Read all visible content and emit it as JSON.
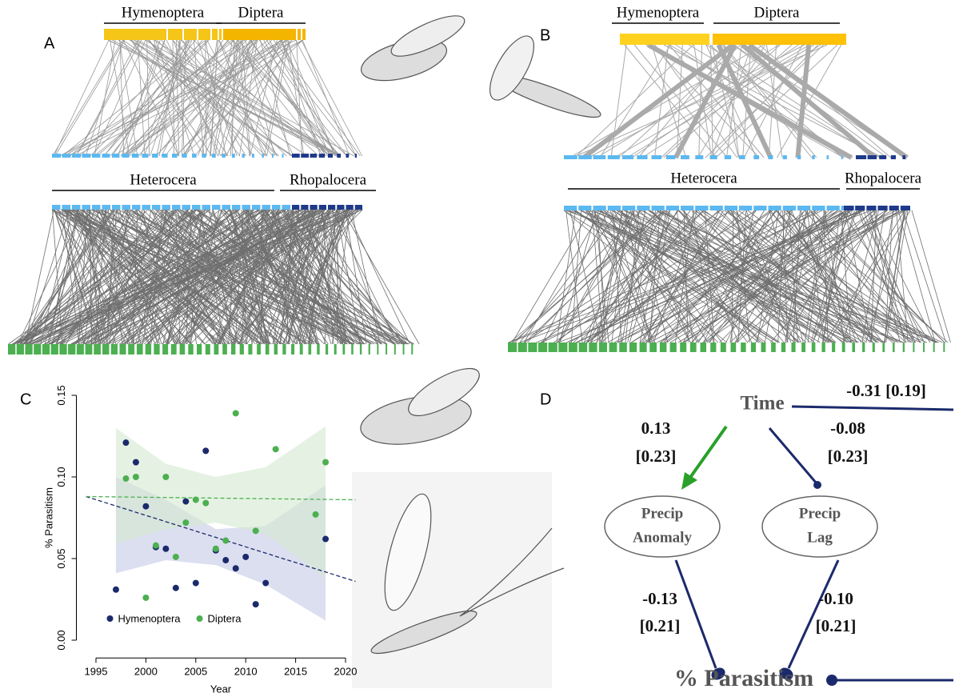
{
  "panels": {
    "a": "A",
    "b": "B",
    "c": "C",
    "d": "D"
  },
  "networks": [
    {
      "top_groups": [
        "Hymenoptera",
        "Diptera"
      ],
      "bottom_groups": [
        "Heterocera",
        "Rhopalocera"
      ]
    },
    {
      "top_groups": [
        "Hymenoptera",
        "Diptera"
      ],
      "bottom_groups": [
        "Heterocera",
        "Rhopalocera"
      ]
    }
  ],
  "chart_data": {
    "type": "scatter",
    "xlabel": "Year",
    "ylabel": "% Parasitism",
    "xlim": [
      1994,
      2021
    ],
    "ylim": [
      -0.005,
      0.155
    ],
    "xticks": [
      1995,
      2000,
      2005,
      2010,
      2015,
      2020
    ],
    "yticks": [
      {
        "value": 0,
        "label": "0.00"
      },
      {
        "value": 0.05,
        "label": "0.05"
      },
      {
        "value": 0.1,
        "label": "0.10"
      },
      {
        "value": 0.15,
        "label": "0.15"
      }
    ],
    "legend": "bottom-left",
    "series": [
      {
        "name": "Hymenoptera",
        "color": "#1b2a6b",
        "band_color": "#c5c9e6",
        "x": [
          1997,
          1998,
          1999,
          2000,
          2001,
          2002,
          2003,
          2004,
          2005,
          2006,
          2007,
          2008,
          2009,
          2010,
          2011,
          2012,
          2018
        ],
        "values": [
          0.031,
          0.121,
          0.109,
          0.082,
          0.057,
          0.056,
          0.032,
          0.085,
          0.035,
          0.116,
          0.055,
          0.049,
          0.044,
          0.051,
          0.022,
          0.035,
          0.062
        ],
        "trend_x": [
          1994,
          2021
        ],
        "trend_values": [
          0.088,
          0.036
        ],
        "band_x": [
          1997,
          2002,
          2007,
          2012,
          2018
        ],
        "band_lower": [
          0.041,
          0.049,
          0.046,
          0.034,
          0.012
        ],
        "band_upper": [
          0.1,
          0.086,
          0.068,
          0.07,
          0.095
        ]
      },
      {
        "name": "Diptera",
        "color": "#4caf50",
        "band_color": "#d4ead0",
        "x": [
          1998,
          1999,
          2000,
          2001,
          2002,
          2003,
          2004,
          2005,
          2006,
          2007,
          2008,
          2009,
          2011,
          2013,
          2017,
          2018
        ],
        "values": [
          0.099,
          0.1,
          0.026,
          0.058,
          0.1,
          0.051,
          0.072,
          0.086,
          0.084,
          0.056,
          0.061,
          0.139,
          0.067,
          0.117,
          0.077,
          0.109
        ],
        "trend_x": [
          1994,
          2021
        ],
        "trend_values": [
          0.088,
          0.086
        ],
        "band_x": [
          1997,
          2002,
          2007,
          2012,
          2018
        ],
        "band_lower": [
          0.059,
          0.068,
          0.072,
          0.065,
          0.038
        ],
        "band_upper": [
          0.13,
          0.108,
          0.1,
          0.106,
          0.131
        ]
      }
    ]
  },
  "diagram": {
    "nodes": {
      "time": "Time",
      "anomaly": [
        "Precip",
        "Anomaly"
      ],
      "lag": [
        "Precip",
        "Lag"
      ],
      "parasitism": "% Parasitism"
    },
    "edges": {
      "time_parasitism": "-0.31 [0.19]",
      "time_anomaly": [
        "0.13",
        "[0.23]"
      ],
      "time_lag": [
        "-0.08",
        "[0.23]"
      ],
      "anomaly_parasitism": [
        "-0.13",
        "[0.21]"
      ],
      "lag_parasitism": [
        "-0.10",
        "[0.21]"
      ]
    }
  }
}
